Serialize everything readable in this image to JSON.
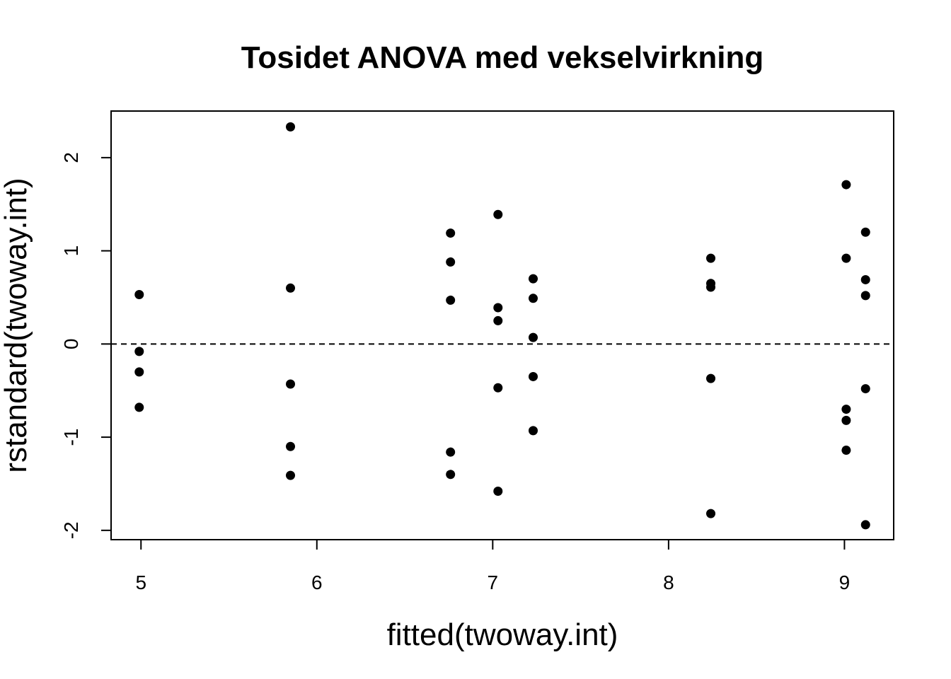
{
  "chart_data": {
    "type": "scatter",
    "title": "Tosidet ANOVA med vekselvirkning",
    "xlabel": "fitted(twoway.int)",
    "ylabel": "rstandard(twoway.int)",
    "xlim": [
      4.83,
      9.28
    ],
    "ylim": [
      -2.1,
      2.5
    ],
    "xticks": [
      5,
      6,
      7,
      8,
      9
    ],
    "yticks": [
      -2,
      -1,
      0,
      1,
      2
    ],
    "reference_line": {
      "y": 0,
      "style": "dashed"
    },
    "point_color": "#000000",
    "grid": false,
    "points": [
      {
        "x": 4.99,
        "y": 0.53
      },
      {
        "x": 4.99,
        "y": -0.08
      },
      {
        "x": 4.99,
        "y": -0.3
      },
      {
        "x": 4.99,
        "y": -0.68
      },
      {
        "x": 5.85,
        "y": 2.33
      },
      {
        "x": 5.85,
        "y": 0.6
      },
      {
        "x": 5.85,
        "y": -0.43
      },
      {
        "x": 5.85,
        "y": -1.1
      },
      {
        "x": 5.85,
        "y": -1.41
      },
      {
        "x": 6.76,
        "y": 1.19
      },
      {
        "x": 6.76,
        "y": 0.88
      },
      {
        "x": 6.76,
        "y": 0.47
      },
      {
        "x": 6.76,
        "y": -1.16
      },
      {
        "x": 6.76,
        "y": -1.4
      },
      {
        "x": 7.03,
        "y": 1.39
      },
      {
        "x": 7.03,
        "y": 0.39
      },
      {
        "x": 7.03,
        "y": 0.25
      },
      {
        "x": 7.03,
        "y": -0.47
      },
      {
        "x": 7.03,
        "y": -1.58
      },
      {
        "x": 7.23,
        "y": 0.7
      },
      {
        "x": 7.23,
        "y": 0.49
      },
      {
        "x": 7.23,
        "y": 0.07
      },
      {
        "x": 7.23,
        "y": -0.35
      },
      {
        "x": 7.23,
        "y": -0.93
      },
      {
        "x": 8.24,
        "y": 0.92
      },
      {
        "x": 8.24,
        "y": 0.65
      },
      {
        "x": 8.24,
        "y": 0.61
      },
      {
        "x": 8.24,
        "y": -0.37
      },
      {
        "x": 8.24,
        "y": -1.82
      },
      {
        "x": 9.01,
        "y": 1.71
      },
      {
        "x": 9.01,
        "y": 0.92
      },
      {
        "x": 9.01,
        "y": -0.7
      },
      {
        "x": 9.01,
        "y": -0.82
      },
      {
        "x": 9.01,
        "y": -1.14
      },
      {
        "x": 9.12,
        "y": 1.2
      },
      {
        "x": 9.12,
        "y": 0.69
      },
      {
        "x": 9.12,
        "y": 0.52
      },
      {
        "x": 9.12,
        "y": -0.48
      },
      {
        "x": 9.12,
        "y": -1.94
      }
    ]
  }
}
